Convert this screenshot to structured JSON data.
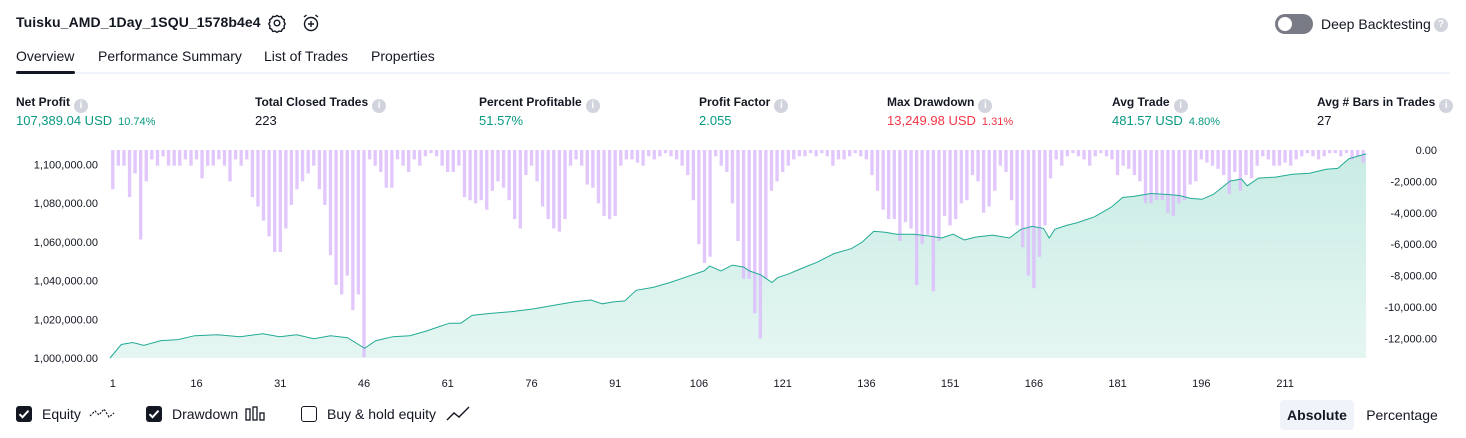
{
  "header": {
    "strategy_name": "Tuisku_AMD_1Day_1SQU_1578b4e4",
    "settings_icon": "gear-icon",
    "alert_icon": "alarm-clock-plus-icon",
    "deep_backtesting_label": "Deep Backtesting",
    "deep_backtesting_enabled": false
  },
  "tabs": [
    {
      "label": "Overview",
      "active": true
    },
    {
      "label": "Performance Summary",
      "active": false
    },
    {
      "label": "List of Trades",
      "active": false
    },
    {
      "label": "Properties",
      "active": false
    }
  ],
  "metrics": [
    {
      "label": "Net Profit",
      "value": "107,389.04 USD",
      "pct": "10.74%",
      "tone": "pos"
    },
    {
      "label": "Total Closed Trades",
      "value": "223",
      "pct": "",
      "tone": "neutral"
    },
    {
      "label": "Percent Profitable",
      "value": "51.57%",
      "pct": "",
      "tone": "pos"
    },
    {
      "label": "Profit Factor",
      "value": "2.055",
      "pct": "",
      "tone": "pos"
    },
    {
      "label": "Max Drawdown",
      "value": "13,249.98 USD",
      "pct": "1.31%",
      "tone": "neg"
    },
    {
      "label": "Avg Trade",
      "value": "481.57 USD",
      "pct": "4.80%",
      "tone": "pos"
    },
    {
      "label": "Avg # Bars in Trades",
      "value": "27",
      "pct": "",
      "tone": "neutral"
    }
  ],
  "colors": {
    "positive": "#089981",
    "negative": "#f23645",
    "equity_line": "#22ab94",
    "equity_fill": "#c6ebe3",
    "drawdown_bar": "#dcbdfb",
    "drawdown_bar_overlap": "#b4b8e8"
  },
  "chart_data": {
    "type": "area",
    "x_ticks": [
      "1",
      "16",
      "31",
      "46",
      "61",
      "76",
      "91",
      "106",
      "121",
      "136",
      "151",
      "166",
      "181",
      "196",
      "211"
    ],
    "y_left_ticks": [
      "1,100,000.00",
      "1,080,000.00",
      "1,060,000.00",
      "1,040,000.00",
      "1,020,000.00",
      "1,000,000.00"
    ],
    "y_right_ticks": [
      "0.00",
      "-2,000.00",
      "-4,000.00",
      "-6,000.00",
      "-8,000.00",
      "-10,000.00",
      "-12,000.00"
    ],
    "y_left_range": [
      1000000,
      1107500
    ],
    "y_right_range": [
      -13250,
      0
    ],
    "x_range": [
      1,
      223
    ],
    "series": [
      {
        "name": "Equity",
        "kind": "area",
        "points": [
          [
            1,
            1000000
          ],
          [
            3,
            1007000
          ],
          [
            5,
            1008000
          ],
          [
            7,
            1006500
          ],
          [
            10,
            1009000
          ],
          [
            13,
            1009500
          ],
          [
            16,
            1011500
          ],
          [
            20,
            1012000
          ],
          [
            24,
            1011000
          ],
          [
            28,
            1012500
          ],
          [
            31,
            1011000
          ],
          [
            34,
            1012000
          ],
          [
            37,
            1010000
          ],
          [
            40,
            1011500
          ],
          [
            43,
            1010500
          ],
          [
            46,
            1005000
          ],
          [
            48,
            1009000
          ],
          [
            51,
            1011000
          ],
          [
            54,
            1011500
          ],
          [
            57,
            1014000
          ],
          [
            59,
            1016000
          ],
          [
            61,
            1018000
          ],
          [
            63,
            1018000
          ],
          [
            65,
            1022000
          ],
          [
            68,
            1023000
          ],
          [
            72,
            1024000
          ],
          [
            76,
            1025500
          ],
          [
            80,
            1027500
          ],
          [
            83,
            1029000
          ],
          [
            86,
            1030000
          ],
          [
            88,
            1028000
          ],
          [
            90,
            1029000
          ],
          [
            92,
            1029500
          ],
          [
            94,
            1035000
          ],
          [
            97,
            1036500
          ],
          [
            100,
            1039000
          ],
          [
            103,
            1042000
          ],
          [
            106,
            1045000
          ],
          [
            107,
            1047500
          ],
          [
            109,
            1045000
          ],
          [
            111,
            1048000
          ],
          [
            113,
            1047000
          ],
          [
            114,
            1045000
          ],
          [
            116,
            1043000
          ],
          [
            118,
            1039000
          ],
          [
            119,
            1041500
          ],
          [
            121,
            1043500
          ],
          [
            123,
            1046000
          ],
          [
            126,
            1049500
          ],
          [
            129,
            1054000
          ],
          [
            132,
            1056500
          ],
          [
            134,
            1060000
          ],
          [
            136,
            1065500
          ],
          [
            138,
            1065000
          ],
          [
            140,
            1064000
          ],
          [
            143,
            1064000
          ],
          [
            146,
            1063000
          ],
          [
            148,
            1062000
          ],
          [
            150,
            1064000
          ],
          [
            152,
            1061000
          ],
          [
            154,
            1062500
          ],
          [
            157,
            1063500
          ],
          [
            160,
            1062000
          ],
          [
            162,
            1066500
          ],
          [
            164,
            1068000
          ],
          [
            166,
            1067000
          ],
          [
            167,
            1062000
          ],
          [
            168,
            1066500
          ],
          [
            170,
            1068500
          ],
          [
            172,
            1070000
          ],
          [
            175,
            1073000
          ],
          [
            178,
            1078000
          ],
          [
            180,
            1083000
          ],
          [
            182,
            1083500
          ],
          [
            185,
            1085000
          ],
          [
            188,
            1084500
          ],
          [
            190,
            1084000
          ],
          [
            192,
            1082500
          ],
          [
            194,
            1082000
          ],
          [
            196,
            1084500
          ],
          [
            199,
            1091500
          ],
          [
            201,
            1092500
          ],
          [
            202,
            1089000
          ],
          [
            204,
            1093000
          ],
          [
            207,
            1093500
          ],
          [
            210,
            1095000
          ],
          [
            213,
            1095500
          ],
          [
            216,
            1097500
          ],
          [
            218,
            1098000
          ],
          [
            220,
            1103000
          ],
          [
            223,
            1105500
          ]
        ]
      },
      {
        "name": "Drawdown",
        "kind": "bar",
        "values": [
          -2500,
          -1000,
          -1000,
          -3000,
          -1500,
          -5700,
          -2000,
          -600,
          -1000,
          -400,
          -1000,
          -1000,
          -1000,
          -600,
          -1000,
          -600,
          -1800,
          -1000,
          -1000,
          -600,
          -1000,
          -2000,
          -600,
          -1000,
          -600,
          -3000,
          -3600,
          -4500,
          -5500,
          -6500,
          -6500,
          -5000,
          -3500,
          -2500,
          -2000,
          -1500,
          -1000,
          -2500,
          -3500,
          -6700,
          -8600,
          -9200,
          -8000,
          -10200,
          -9200,
          -13200,
          -600,
          -1000,
          -1400,
          -2400,
          -2400,
          -600,
          -1000,
          -1400,
          -600,
          -1000,
          -400,
          -200,
          -400,
          -1000,
          -1400,
          -1400,
          -1000,
          -3000,
          -3200,
          -3400,
          -3200,
          -3800,
          -2600,
          -2000,
          -2400,
          -3200,
          -4400,
          -5000,
          -1600,
          -1000,
          -2000,
          -3600,
          -4400,
          -5000,
          -5200,
          -4400,
          -1000,
          -600,
          -1000,
          -2200,
          -2400,
          -3400,
          -4200,
          -4400,
          -4200,
          -1000,
          -600,
          -600,
          -800,
          -1000,
          -400,
          -600,
          -400,
          -200,
          -400,
          -600,
          -1000,
          -1600,
          -3200,
          -6000,
          -7200,
          -6800,
          -400,
          -1000,
          -1400,
          -3400,
          -5800,
          -8200,
          -8200,
          -10400,
          -12000,
          -8200,
          -2600,
          -2000,
          -1400,
          -1000,
          -600,
          -400,
          -400,
          -200,
          -400,
          -200,
          -400,
          -1000,
          -600,
          -600,
          -400,
          -200,
          -400,
          -600,
          -1600,
          -2600,
          -3800,
          -4400,
          -4400,
          -5800,
          -4600,
          -5000,
          -8600,
          -6000,
          -5400,
          -9000,
          -5800,
          -4200,
          -4800,
          -4400,
          -3400,
          -3200,
          -1600,
          -2000,
          -4000,
          -3600,
          -2600,
          -1000,
          -1400,
          -3200,
          -4800,
          -6200,
          -8000,
          -8800,
          -6800,
          -4800,
          -1800,
          -600,
          -1000,
          -400,
          -200,
          -400,
          -600,
          -1000,
          -400,
          -200,
          -400,
          -600,
          -1600,
          -1000,
          -1200,
          -1600,
          -2000,
          -3400,
          -3400,
          -3200,
          -3200,
          -4000,
          -4200,
          -3400,
          -3200,
          -2200,
          -2000,
          -600,
          -800,
          -1000,
          -1200,
          -1600,
          -2800,
          -1400,
          -2600,
          -1600,
          -1800,
          -1000,
          -400,
          -600,
          -1000,
          -1000,
          -800,
          -1000,
          -600,
          -400,
          -200,
          -400,
          -600,
          -400,
          -200,
          -200,
          -400,
          -200,
          -600,
          -400,
          -800
        ]
      }
    ]
  },
  "legend": [
    {
      "label": "Equity",
      "checked": true,
      "icon": "equity-line-icon"
    },
    {
      "label": "Drawdown",
      "checked": true,
      "icon": "drawdown-bars-icon"
    },
    {
      "label": "Buy & hold equity",
      "checked": false,
      "icon": "buy-hold-line-icon"
    }
  ],
  "view_mode": {
    "options": [
      "Absolute",
      "Percentage"
    ],
    "selected": "Absolute"
  }
}
